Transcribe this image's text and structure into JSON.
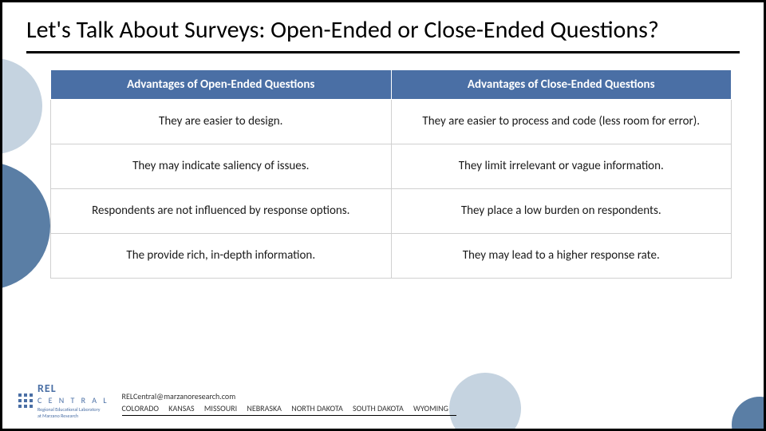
{
  "title": "Let's Talk About Surveys: Open-Ended or Close-Ended Questions?",
  "table": {
    "headers": [
      "Advantages of Open-Ended Questions",
      "Advantages of Close-Ended Questions"
    ],
    "rows": [
      [
        "They are easier to design.",
        "They are easier to process and code (less room for error)."
      ],
      [
        "They may indicate saliency of issues.",
        "They limit irrelevant or vague information."
      ],
      [
        "Respondents are not influenced by response options.",
        "They place a low burden on respondents."
      ],
      [
        "The provide rich, in-depth information.",
        "They may lead to a higher response rate."
      ]
    ],
    "header_bg": "#4a6fa5",
    "header_color": "#ffffff",
    "cell_bg": "#ffffff",
    "border_color": "#d0d0d0",
    "font_size_header": 15,
    "font_size_cell": 15
  },
  "logo": {
    "main": "REL",
    "sub": "C E N T R A L",
    "tagline1": "Regional Educational Laboratory",
    "tagline2": "at Marzano Research"
  },
  "footer": {
    "email": "RELCentral@marzanoresearch.com",
    "states": [
      "COLORADO",
      "KANSAS",
      "MISSOURI",
      "NEBRASKA",
      "NORTH DAKOTA",
      "SOUTH DAKOTA",
      "WYOMING"
    ]
  },
  "colors": {
    "accent": "#4a6fa5",
    "soft": "#c5d3e0",
    "text": "#000000"
  }
}
